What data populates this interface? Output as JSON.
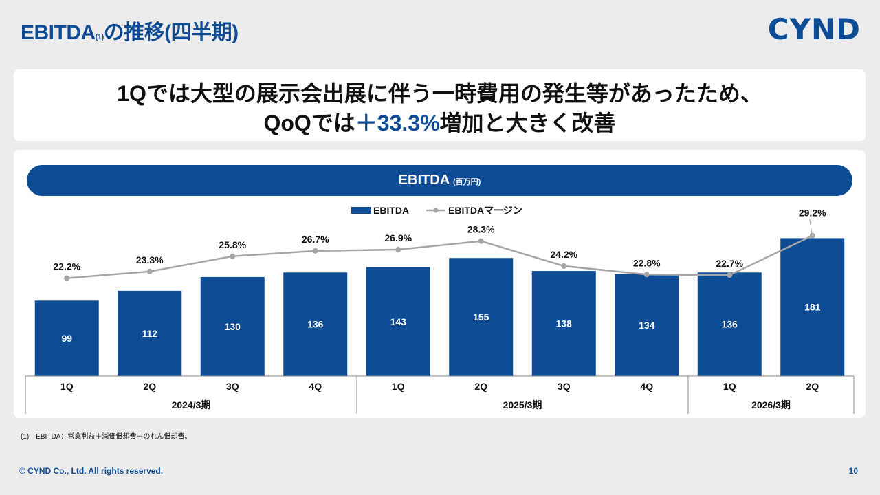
{
  "page": {
    "title_main": "EBITDA",
    "title_note": "(1)",
    "title_tail": "の推移(四半期)",
    "logo": "CYND",
    "headline_line1": "1Qでは大型の展示会出展に伴う一時費用の発生等があったため、",
    "headline_line2_pre": "QoQでは",
    "headline_line2_accent": "＋33.3%",
    "headline_line2_post": "増加と大きく改善",
    "banner_title": "EBITDA",
    "banner_unit": "(百万円)",
    "footnote": "(1)　EBITDA：営業利益＋減価償却費＋のれん償却費。",
    "copyright": "© CYND Co., Ltd. All rights reserved.",
    "page_number": "10"
  },
  "colors": {
    "bar": "#0e4c96",
    "line": "#a6a6a6",
    "accent": "#0e4c96"
  },
  "chart_data": {
    "type": "bar",
    "title": "EBITDA (百万円)",
    "categories": [
      "1Q",
      "2Q",
      "3Q",
      "4Q",
      "1Q",
      "2Q",
      "3Q",
      "4Q",
      "1Q",
      "2Q"
    ],
    "groups": [
      {
        "label": "2024/3期",
        "count": 4
      },
      {
        "label": "2025/3期",
        "count": 4
      },
      {
        "label": "2026/3期",
        "count": 2
      }
    ],
    "series": [
      {
        "name": "EBITDA",
        "type": "bar",
        "values": [
          99,
          112,
          130,
          136,
          143,
          155,
          138,
          134,
          136,
          181
        ]
      },
      {
        "name": "EBITDAマージン",
        "type": "line",
        "values": [
          22.2,
          23.3,
          25.8,
          26.7,
          26.9,
          28.3,
          24.2,
          22.8,
          22.7,
          29.2
        ],
        "labels": [
          "22.2%",
          "23.3%",
          "25.8%",
          "26.7%",
          "26.9%",
          "28.3%",
          "24.2%",
          "22.8%",
          "22.7%",
          "29.2%"
        ]
      }
    ],
    "legend": [
      "EBITDA",
      "EBITDAマージン"
    ],
    "bar_ylim": [
      0,
      185
    ],
    "line_ylim": [
      8,
      32
    ]
  }
}
